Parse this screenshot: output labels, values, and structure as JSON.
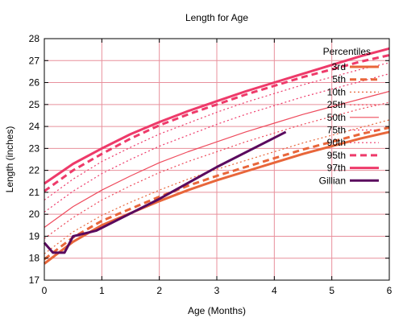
{
  "chart_data": {
    "type": "line",
    "title": "Length for Age",
    "xlabel": "Age (Months)",
    "ylabel": "Length (inches)",
    "xlim": [
      0,
      6
    ],
    "ylim": [
      17,
      28
    ],
    "xticks": [
      0,
      1,
      2,
      3,
      4,
      5,
      6
    ],
    "yticks": [
      17,
      18,
      19,
      20,
      21,
      22,
      23,
      24,
      25,
      26,
      27,
      28
    ],
    "grid": true,
    "legend_title": "Percentiles",
    "legend_position": "top-right",
    "series": [
      {
        "name": "3rd",
        "color": "#e8663a",
        "style": "solid",
        "width": "thick",
        "x": [
          0,
          0.5,
          1,
          1.5,
          2,
          2.5,
          3,
          3.5,
          4,
          4.5,
          5,
          5.5,
          6
        ],
        "y": [
          17.75,
          18.75,
          19.5,
          20.05,
          20.6,
          21.1,
          21.55,
          21.95,
          22.35,
          22.75,
          23.1,
          23.45,
          23.75
        ]
      },
      {
        "name": "5th",
        "color": "#e8663a",
        "style": "dashed",
        "width": "thick",
        "x": [
          0,
          0.5,
          1,
          1.5,
          2,
          2.5,
          3,
          3.5,
          4,
          4.5,
          5,
          5.5,
          6
        ],
        "y": [
          17.95,
          18.95,
          19.7,
          20.25,
          20.8,
          21.3,
          21.75,
          22.15,
          22.55,
          22.95,
          23.3,
          23.65,
          23.95
        ]
      },
      {
        "name": "10th",
        "color": "#e8663a",
        "style": "dotted",
        "width": "thin",
        "x": [
          0,
          0.5,
          1,
          1.5,
          2,
          2.5,
          3,
          3.5,
          4,
          4.5,
          5,
          5.5,
          6
        ],
        "y": [
          18.2,
          19.2,
          19.95,
          20.55,
          21.1,
          21.6,
          22.05,
          22.45,
          22.85,
          23.25,
          23.6,
          23.95,
          24.3
        ]
      },
      {
        "name": "25th",
        "color": "#ee4b5d",
        "style": "dotted",
        "width": "thin",
        "x": [
          0,
          0.5,
          1,
          1.5,
          2,
          2.5,
          3,
          3.5,
          4,
          4.5,
          5,
          5.5,
          6
        ],
        "y": [
          18.9,
          19.85,
          20.65,
          21.3,
          21.9,
          22.4,
          22.85,
          23.3,
          23.7,
          24.1,
          24.45,
          24.8,
          25.1
        ]
      },
      {
        "name": "50th",
        "color": "#ee4b5d",
        "style": "solid",
        "width": "thin",
        "x": [
          0,
          0.5,
          1,
          1.5,
          2,
          2.5,
          3,
          3.5,
          4,
          4.5,
          5,
          5.5,
          6
        ],
        "y": [
          19.4,
          20.35,
          21.1,
          21.75,
          22.35,
          22.85,
          23.3,
          23.75,
          24.15,
          24.55,
          24.9,
          25.25,
          25.6
        ]
      },
      {
        "name": "75th",
        "color": "#ee3a6a",
        "style": "dotted",
        "width": "thin",
        "x": [
          0,
          0.5,
          1,
          1.5,
          2,
          2.5,
          3,
          3.5,
          4,
          4.5,
          5,
          5.5,
          6
        ],
        "y": [
          20.1,
          21.05,
          21.85,
          22.5,
          23.1,
          23.6,
          24.1,
          24.55,
          24.95,
          25.35,
          25.7,
          26.05,
          26.4
        ]
      },
      {
        "name": "90th",
        "color": "#ee3a6a",
        "style": "dotted",
        "width": "thin",
        "x": [
          0,
          0.5,
          1,
          1.5,
          2,
          2.5,
          3,
          3.5,
          4,
          4.5,
          5,
          5.5,
          6
        ],
        "y": [
          20.65,
          21.6,
          22.4,
          23.05,
          23.65,
          24.15,
          24.65,
          25.1,
          25.5,
          25.9,
          26.25,
          26.6,
          26.9
        ]
      },
      {
        "name": "95th",
        "color": "#ee3a6a",
        "style": "dashed",
        "width": "thick",
        "x": [
          0,
          0.5,
          1,
          1.5,
          2,
          2.5,
          3,
          3.5,
          4,
          4.5,
          5,
          5.5,
          6
        ],
        "y": [
          21.05,
          22.0,
          22.75,
          23.45,
          24.05,
          24.55,
          25.0,
          25.45,
          25.85,
          26.25,
          26.6,
          26.95,
          27.25
        ]
      },
      {
        "name": "97th",
        "color": "#ee3a6a",
        "style": "solid",
        "width": "thick",
        "x": [
          0,
          0.5,
          1,
          1.5,
          2,
          2.5,
          3,
          3.5,
          4,
          4.5,
          5,
          5.5,
          6
        ],
        "y": [
          21.4,
          22.3,
          23.0,
          23.65,
          24.2,
          24.7,
          25.15,
          25.6,
          26.0,
          26.4,
          26.8,
          27.2,
          27.55
        ]
      },
      {
        "name": "Gillian",
        "color": "#5a0a5e",
        "style": "solid",
        "width": "thick",
        "x": [
          0,
          0.15,
          0.35,
          0.5,
          0.9,
          2.0,
          3.0,
          4.2
        ],
        "y": [
          18.7,
          18.25,
          18.25,
          19.0,
          19.25,
          20.7,
          22.15,
          23.75
        ]
      }
    ]
  }
}
